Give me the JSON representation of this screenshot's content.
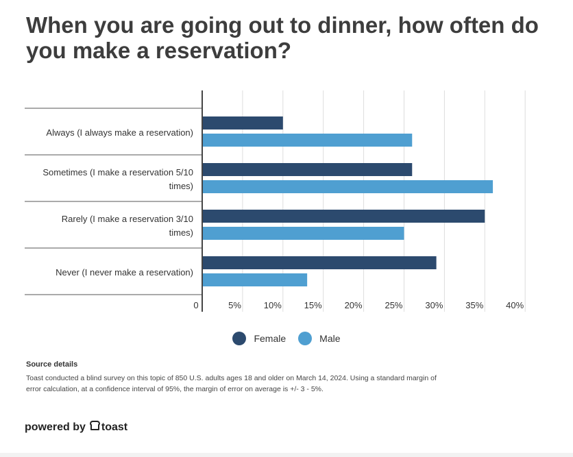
{
  "title": "When you are going out to dinner, how often do you make a reservation?",
  "chart_data": {
    "type": "bar",
    "orientation": "horizontal",
    "categories": [
      "Always (I always make a reservation)",
      "Sometimes (I make a reservation 5/10 times)",
      "Rarely (I make a reservation 3/10 times)",
      "Never (I never make a reservation)"
    ],
    "category_lines": [
      [
        "Always (I always make a reservation)"
      ],
      [
        "Sometimes (I make a reservation 5/10",
        "times)"
      ],
      [
        "Rarely (I make a reservation 3/10",
        "times)"
      ],
      [
        "Never (I never make a reservation)"
      ]
    ],
    "series": [
      {
        "name": "Female",
        "color": "#2c4a6e",
        "values": [
          10,
          26,
          35,
          29
        ]
      },
      {
        "name": "Male",
        "color": "#4f9fd1",
        "values": [
          26,
          36,
          25,
          13
        ]
      }
    ],
    "xlim": [
      0,
      40
    ],
    "ticks": [
      0,
      5,
      10,
      15,
      20,
      25,
      30,
      35,
      40
    ],
    "tick_labels": [
      "0",
      "5%",
      "10%",
      "15%",
      "20%",
      "25%",
      "30%",
      "35%",
      "40%"
    ],
    "grid": true,
    "legend_position": "bottom-center"
  },
  "legend": [
    {
      "label": "Female",
      "color": "#2c4a6e"
    },
    {
      "label": "Male",
      "color": "#4f9fd1"
    }
  ],
  "source": {
    "heading": "Source details",
    "text": "Toast conducted a blind survey on this topic of 850 U.S. adults ages 18 and older on March 14, 2024. Using a standard margin of error calculation, at a confidence interval of 95%, the margin of error on average is +/- 3 - 5%."
  },
  "brand": {
    "prefix": "powered by",
    "name": "toast",
    "icon": "toast-logo-icon"
  }
}
